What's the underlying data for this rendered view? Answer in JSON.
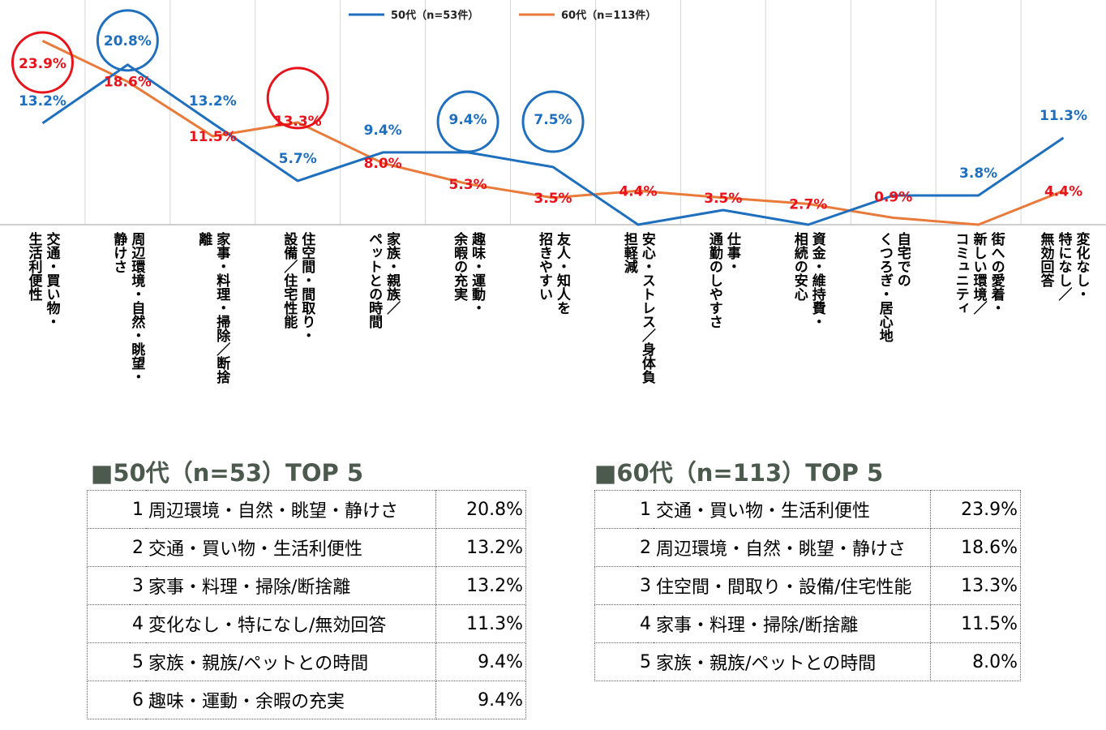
{
  "chart_data": {
    "type": "line",
    "categories": [
      "交通・買い物・\n生活利便性",
      "周辺環境・自然・眺望・\n静けさ",
      "家事・料理・掃除／断捨\n離",
      "住空間・間取り・\n設備／住宅性能",
      "家族・親族／\nペットとの時間",
      "趣味・運動・\n余暇の充実",
      "友人・知人を\n招きやすい",
      "安心・ストレス／身体負\n担軽減",
      "仕事・\n通勤のしやすさ",
      "資金・維持費・\n相続の安心",
      "自宅での\nくつろぎ・居心地",
      "街への愛着・\n新しい環境／\nコミュニティ",
      "変化なし・\n特になし／\n無効回答"
    ],
    "series": [
      {
        "name": "50代（n=53件）",
        "color": "#1f6fbf",
        "label_color": "#1f6fbf",
        "values": [
          13.2,
          20.8,
          13.2,
          5.7,
          9.4,
          9.4,
          7.5,
          0.0,
          1.9,
          0.0,
          3.8,
          3.8,
          11.3
        ],
        "labels": [
          "13.2%",
          "20.8%",
          "13.2%",
          "5.7%",
          "9.4%",
          "9.4%",
          "7.5%",
          "",
          "",
          "",
          "",
          "3.8%",
          "11.3%"
        ],
        "circled": [
          1,
          5,
          6
        ]
      },
      {
        "name": "60代（n=113件）",
        "color": "#ea7a3a",
        "label_color": "#e8121b",
        "values": [
          23.9,
          18.6,
          11.5,
          13.3,
          8.0,
          5.3,
          3.5,
          4.4,
          3.5,
          2.7,
          0.9,
          0.0,
          4.4
        ],
        "labels": [
          "23.9%",
          "18.6%",
          "11.5%",
          "13.3%",
          "8.0%",
          "5.3%",
          "3.5%",
          "4.4%",
          "3.5%",
          "2.7%",
          "0.9%",
          "",
          "4.4%"
        ],
        "circled": [
          0,
          3
        ]
      }
    ],
    "ylim": [
      0,
      25
    ],
    "legend": "top-center",
    "grid": "vertical separators"
  },
  "tables": [
    {
      "title": "■50代（n=53）TOP 5",
      "rows": [
        {
          "rank": "1",
          "item": "周辺環境・自然・眺望・静けさ",
          "pct": "20.8%"
        },
        {
          "rank": "2",
          "item": "交通・買い物・生活利便性",
          "pct": "13.2%"
        },
        {
          "rank": "3",
          "item": "家事・料理・掃除/断捨離",
          "pct": "13.2%"
        },
        {
          "rank": "4",
          "item": "変化なし・特になし/無効回答",
          "pct": "11.3%"
        },
        {
          "rank": "5",
          "item": "家族・親族/ペットとの時間",
          "pct": "9.4%"
        },
        {
          "rank": "6",
          "item": "趣味・運動・余暇の充実",
          "pct": "9.4%"
        }
      ]
    },
    {
      "title": "■60代（n=113）TOP 5",
      "rows": [
        {
          "rank": "1",
          "item": "交通・買い物・生活利便性",
          "pct": "23.9%"
        },
        {
          "rank": "2",
          "item": "周辺環境・自然・眺望・静けさ",
          "pct": "18.6%"
        },
        {
          "rank": "3",
          "item": "住空間・間取り・設備/住宅性能",
          "pct": "13.3%"
        },
        {
          "rank": "4",
          "item": "家事・料理・掃除/断捨離",
          "pct": "11.5%"
        },
        {
          "rank": "5",
          "item": "家族・親族/ペットとの時間",
          "pct": "8.0%"
        }
      ]
    }
  ]
}
